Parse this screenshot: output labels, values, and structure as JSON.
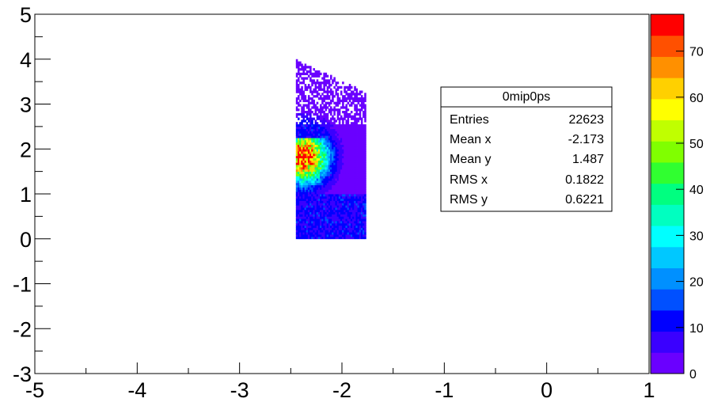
{
  "chart_data": {
    "type": "heatmap",
    "title": "",
    "xlabel": "",
    "ylabel": "",
    "xlim": [
      -5,
      1
    ],
    "ylim": [
      -3,
      5
    ],
    "x_ticks": [
      "-5",
      "-4",
      "-3",
      "-2",
      "-1",
      "0",
      "1"
    ],
    "y_ticks": [
      "-3",
      "-2",
      "-1",
      "0",
      "1",
      "2",
      "3",
      "4",
      "5"
    ],
    "grid": false,
    "histogram": {
      "x_range": [
        -2.45,
        -1.78
      ],
      "y_range": [
        0.0,
        4.0
      ],
      "peak_x": -2.38,
      "peak_y": 1.8,
      "max_count": 75
    },
    "stats_box": {
      "title": "0mip0ps",
      "rows": [
        {
          "label": "Entries",
          "value": "22623"
        },
        {
          "label": "Mean x",
          "value": "-2.173"
        },
        {
          "label": "Mean y",
          "value": "1.487"
        },
        {
          "label": "RMS x",
          "value": "0.1822"
        },
        {
          "label": "RMS y",
          "value": "0.6221"
        }
      ]
    },
    "colorbar": {
      "range": [
        0,
        78
      ],
      "ticks": [
        "0",
        "10",
        "20",
        "30",
        "40",
        "50",
        "60",
        "70"
      ],
      "colors": [
        "#6a00ff",
        "#3a00ff",
        "#0000ff",
        "#0050ff",
        "#0090ff",
        "#00c8ff",
        "#00ffff",
        "#00ffc0",
        "#00ff80",
        "#30ff30",
        "#80ff00",
        "#c0ff00",
        "#ffff00",
        "#ffd000",
        "#ff9000",
        "#ff5000",
        "#ff0000"
      ]
    }
  }
}
